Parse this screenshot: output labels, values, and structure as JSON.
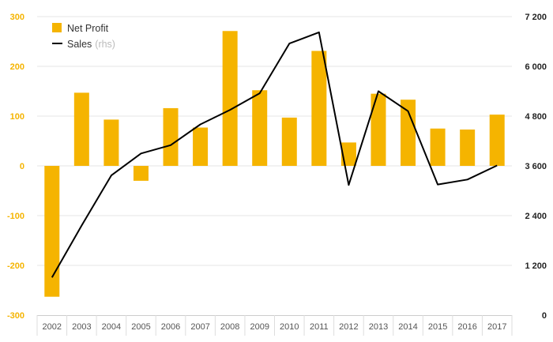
{
  "chart_data": {
    "type": "bar",
    "categories": [
      "2002",
      "2003",
      "2004",
      "2005",
      "2006",
      "2007",
      "2008",
      "2009",
      "2010",
      "2011",
      "2012",
      "2013",
      "2014",
      "2015",
      "2016",
      "2017"
    ],
    "series": [
      {
        "name": "Net Profit",
        "type": "bar",
        "axis": "left",
        "color": "#f5b400",
        "values": [
          -263,
          147,
          93,
          -30,
          116,
          77,
          271,
          152,
          97,
          231,
          47,
          145,
          133,
          75,
          73,
          103
        ]
      },
      {
        "name": "Sales",
        "name_suffix": "(rhs)",
        "type": "line",
        "axis": "right",
        "color": "#000000",
        "values": [
          910,
          2160,
          3370,
          3900,
          4100,
          4600,
          4950,
          5350,
          6550,
          6820,
          3140,
          5400,
          4920,
          3150,
          3270,
          3610
        ]
      }
    ],
    "y_left": {
      "ylim": [
        -300,
        300
      ],
      "ticks": [
        "300",
        "200",
        "100",
        "0",
        "-100",
        "-200",
        "-300"
      ]
    },
    "y_right": {
      "ylim": [
        0,
        7200
      ],
      "ticks": [
        "7 200",
        "6 000",
        "4 800",
        "3 600",
        "2 400",
        "1 200",
        "0"
      ]
    },
    "grid": "horizontal",
    "legend_position": "top-left",
    "title": "",
    "xlabel": "",
    "ylabel": ""
  }
}
